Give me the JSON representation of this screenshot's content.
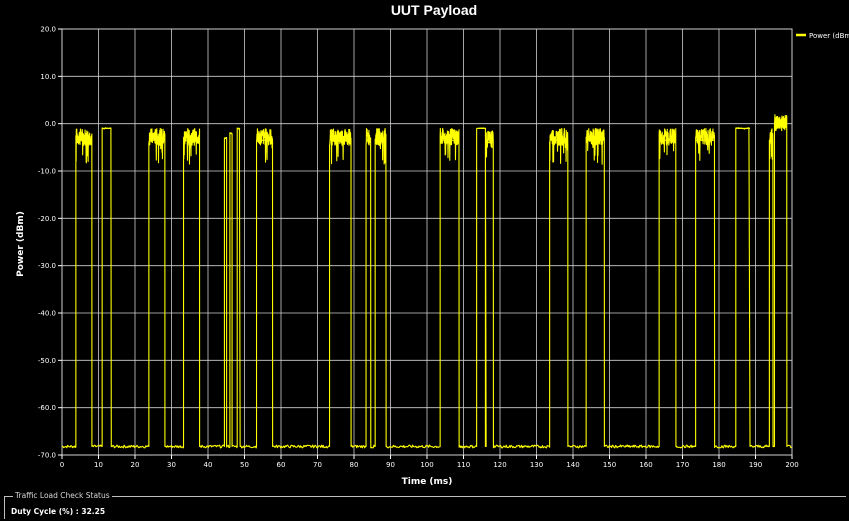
{
  "chart_data": {
    "type": "line",
    "title": "UUT Payload",
    "xlabel": "Time (ms)",
    "ylabel": "Power (dBm)",
    "xlim": [
      0,
      200
    ],
    "ylim": [
      -70,
      20
    ],
    "x_ticks": [
      0,
      10,
      20,
      30,
      40,
      50,
      60,
      70,
      80,
      90,
      100,
      110,
      120,
      130,
      140,
      150,
      160,
      170,
      180,
      190,
      200
    ],
    "y_ticks": [
      20,
      10,
      0,
      -10,
      -20,
      -30,
      -40,
      -50,
      -60,
      -70
    ],
    "y_tick_labels": [
      "20.0",
      "10.0",
      "0.0",
      "-10.0",
      "-20.0",
      "-30.0",
      "-40.0",
      "-50.0",
      "-60.0",
      "-70.0"
    ],
    "grid": true,
    "legend_position": "top-right",
    "series": [
      {
        "name": "Power (dBm)",
        "color": "#ffff00",
        "baseline": -68.2,
        "bursts": [
          {
            "start": 3.8,
            "end": 8.2,
            "level": -3.5,
            "noisy": true
          },
          {
            "start": 11.0,
            "end": 13.5,
            "level": -1.0,
            "noisy": false
          },
          {
            "start": 23.8,
            "end": 28.2,
            "level": -3.5,
            "noisy": true
          },
          {
            "start": 33.3,
            "end": 37.7,
            "level": -3.5,
            "noisy": true
          },
          {
            "start": 44.5,
            "end": 45.1,
            "level": -3.0,
            "noisy": false
          },
          {
            "start": 46.0,
            "end": 46.6,
            "level": -2.0,
            "noisy": false
          },
          {
            "start": 48.0,
            "end": 48.8,
            "level": -1.0,
            "noisy": false
          },
          {
            "start": 53.3,
            "end": 57.7,
            "level": -3.5,
            "noisy": true
          },
          {
            "start": 73.3,
            "end": 79.2,
            "level": -3.5,
            "noisy": true
          },
          {
            "start": 83.3,
            "end": 84.6,
            "level": -3.5,
            "noisy": true
          },
          {
            "start": 85.8,
            "end": 88.8,
            "level": -3.5,
            "noisy": true
          },
          {
            "start": 103.6,
            "end": 108.8,
            "level": -3.5,
            "noisy": true
          },
          {
            "start": 113.6,
            "end": 116.2,
            "level": -1.0,
            "noisy": false
          },
          {
            "start": 116.0,
            "end": 118.2,
            "level": -4.0,
            "noisy": true
          },
          {
            "start": 133.6,
            "end": 138.6,
            "level": -3.5,
            "noisy": true
          },
          {
            "start": 143.6,
            "end": 148.6,
            "level": -3.5,
            "noisy": true
          },
          {
            "start": 163.6,
            "end": 168.2,
            "level": -3.5,
            "noisy": true
          },
          {
            "start": 173.6,
            "end": 178.8,
            "level": -3.5,
            "noisy": true
          },
          {
            "start": 184.6,
            "end": 188.5,
            "level": -1.0,
            "noisy": false
          },
          {
            "start": 193.8,
            "end": 194.8,
            "level": -3.5,
            "noisy": true
          },
          {
            "start": 195.2,
            "end": 198.6,
            "level": -0.5,
            "noisy": true
          }
        ]
      }
    ]
  },
  "status": {
    "group_title": "Traffic Load Check Status",
    "duty_cycle_label": "Duty Cycle (%) : 32.25"
  }
}
